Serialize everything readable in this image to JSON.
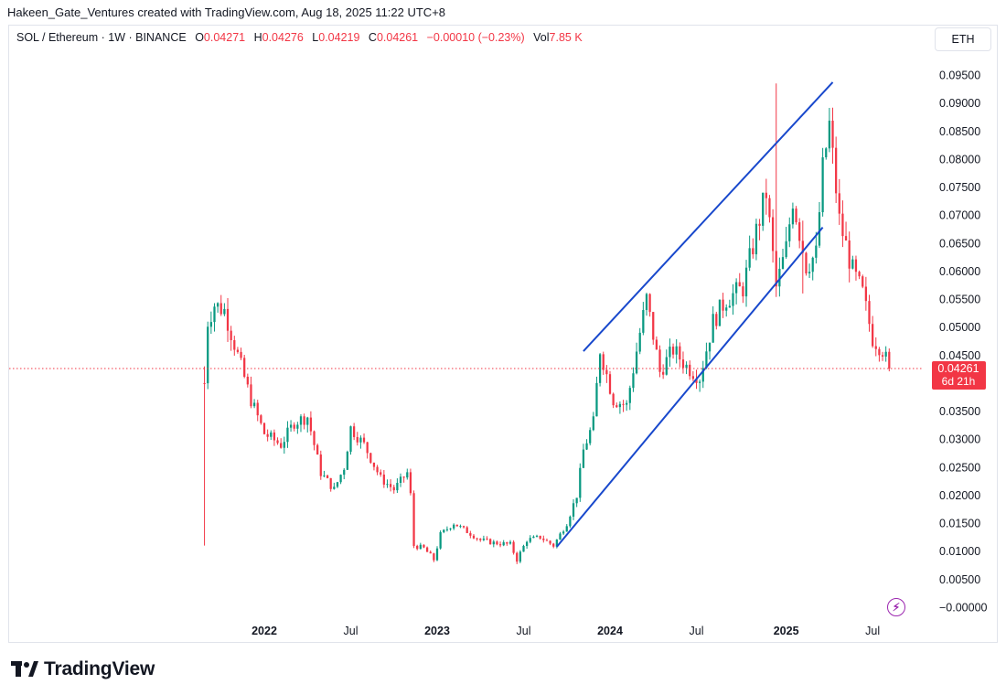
{
  "header": {
    "credit": "Hakeen_Gate_Ventures created with TradingView.com, Aug 18, 2025 11:22 UTC+8",
    "symbol": "SOL / Ethereum · 1W · BINANCE",
    "o_label": "O",
    "o_value": "0.04271",
    "h_label": "H",
    "h_value": "0.04276",
    "l_label": "L",
    "l_value": "0.04219",
    "c_label": "C",
    "c_value": "0.04261",
    "change": "−0.00010 (−0.23%)",
    "vol_label": "Vol",
    "vol_value": "7.85 K",
    "currency": "ETH"
  },
  "price_tag": {
    "price": "0.04261",
    "countdown": "6d 21h"
  },
  "brand": {
    "name": "TradingView"
  },
  "colors": {
    "up": "#089981",
    "down": "#f23645",
    "channel": "#1848cc",
    "price_line": "#f23645",
    "axis_text": "#131722",
    "flash": "#9c27b0"
  },
  "icons": {
    "flash": "lightning-icon",
    "logo": "tradingview-logo-icon"
  },
  "chart_data": {
    "type": "candlestick",
    "interval": "1W",
    "ylim": [
      -0.0008,
      0.0985
    ],
    "y_ticks": [
      "0.09500",
      "0.09000",
      "0.08500",
      "0.08000",
      "0.07500",
      "0.07000",
      "0.06500",
      "0.06000",
      "0.05500",
      "0.05000",
      "0.04500",
      "0.03500",
      "0.03000",
      "0.02500",
      "0.02000",
      "0.01500",
      "0.01000",
      "0.00500",
      "−0.00000"
    ],
    "y_tick_values": [
      0.095,
      0.09,
      0.085,
      0.08,
      0.075,
      0.07,
      0.065,
      0.06,
      0.055,
      0.05,
      0.045,
      0.035,
      0.03,
      0.025,
      0.02,
      0.015,
      0.01,
      0.005,
      0.0
    ],
    "x_ticks": [
      {
        "label": "2022",
        "date": "2022-01-03",
        "bold": true
      },
      {
        "label": "Jul",
        "date": "2022-07-04",
        "bold": false
      },
      {
        "label": "2023",
        "date": "2023-01-02",
        "bold": true
      },
      {
        "label": "Jul",
        "date": "2023-07-03",
        "bold": false
      },
      {
        "label": "2024",
        "date": "2024-01-01",
        "bold": true
      },
      {
        "label": "Jul",
        "date": "2024-07-01",
        "bold": false
      },
      {
        "label": "2025",
        "date": "2025-01-06",
        "bold": true
      },
      {
        "label": "Jul",
        "date": "2025-07-07",
        "bold": false
      }
    ],
    "last_price": 0.04261,
    "channel": {
      "upper": [
        {
          "date": "2023-11-06",
          "y": 0.0457
        },
        {
          "date": "2025-04-14",
          "y": 0.0937
        }
      ],
      "lower": [
        {
          "date": "2023-09-11",
          "y": 0.0108
        },
        {
          "date": "2025-03-24",
          "y": 0.0678
        }
      ]
    },
    "price_path": [
      [
        "2021-08-30",
        0.04
      ],
      [
        "2021-09-06",
        0.051
      ],
      [
        "2021-09-20",
        0.054
      ],
      [
        "2021-10-11",
        0.053
      ],
      [
        "2021-11-08",
        0.045
      ],
      [
        "2021-12-06",
        0.037
      ],
      [
        "2022-01-03",
        0.031
      ],
      [
        "2022-02-07",
        0.029
      ],
      [
        "2022-03-07",
        0.033
      ],
      [
        "2022-04-04",
        0.034
      ],
      [
        "2022-05-02",
        0.024
      ],
      [
        "2022-05-30",
        0.021
      ],
      [
        "2022-06-20",
        0.025
      ],
      [
        "2022-07-04",
        0.032
      ],
      [
        "2022-08-01",
        0.029
      ],
      [
        "2022-09-05",
        0.023
      ],
      [
        "2022-10-03",
        0.021
      ],
      [
        "2022-10-31",
        0.024
      ],
      [
        "2022-11-07",
        0.02
      ],
      [
        "2022-11-14",
        0.011
      ],
      [
        "2022-12-05",
        0.0105
      ],
      [
        "2022-12-26",
        0.0085
      ],
      [
        "2023-01-09",
        0.013
      ],
      [
        "2023-02-06",
        0.015
      ],
      [
        "2023-03-06",
        0.0135
      ],
      [
        "2023-04-03",
        0.012
      ],
      [
        "2023-05-01",
        0.0115
      ],
      [
        "2023-06-05",
        0.0112
      ],
      [
        "2023-06-19",
        0.0085
      ],
      [
        "2023-07-10",
        0.012
      ],
      [
        "2023-08-07",
        0.0125
      ],
      [
        "2023-09-04",
        0.011
      ],
      [
        "2023-10-02",
        0.015
      ],
      [
        "2023-10-23",
        0.02
      ],
      [
        "2023-11-06",
        0.028
      ],
      [
        "2023-11-27",
        0.033
      ],
      [
        "2023-12-11",
        0.046
      ],
      [
        "2024-01-08",
        0.037
      ],
      [
        "2024-02-05",
        0.036
      ],
      [
        "2024-03-04",
        0.049
      ],
      [
        "2024-03-18",
        0.055
      ],
      [
        "2024-04-15",
        0.042
      ],
      [
        "2024-05-13",
        0.046
      ],
      [
        "2024-06-10",
        0.043
      ],
      [
        "2024-07-08",
        0.041
      ],
      [
        "2024-08-05",
        0.051
      ],
      [
        "2024-09-02",
        0.055
      ],
      [
        "2024-10-07",
        0.057
      ],
      [
        "2024-11-04",
        0.067
      ],
      [
        "2024-11-25",
        0.074
      ],
      [
        "2024-12-16",
        0.057
      ],
      [
        "2025-01-06",
        0.064
      ],
      [
        "2025-01-20",
        0.073
      ],
      [
        "2025-02-17",
        0.061
      ],
      [
        "2025-03-10",
        0.063
      ],
      [
        "2025-03-24",
        0.078
      ],
      [
        "2025-04-07",
        0.086
      ],
      [
        "2025-04-28",
        0.069
      ],
      [
        "2025-05-26",
        0.06
      ],
      [
        "2025-06-16",
        0.056
      ],
      [
        "2025-07-07",
        0.048
      ],
      [
        "2025-07-28",
        0.046
      ],
      [
        "2025-08-11",
        0.04261
      ]
    ],
    "spikes": [
      {
        "date": "2021-08-30",
        "low": 0.011,
        "high": 0.043
      },
      {
        "date": "2024-12-16",
        "low": 0.056,
        "high": 0.0935
      },
      {
        "date": "2025-02-10",
        "low": 0.056,
        "high": 0.069
      }
    ]
  }
}
